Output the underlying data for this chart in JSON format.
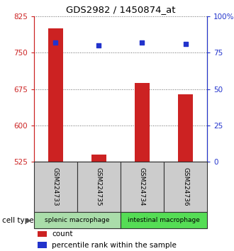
{
  "title": "GDS2982 / 1450874_at",
  "samples": [
    "GSM224733",
    "GSM224735",
    "GSM224734",
    "GSM224736"
  ],
  "bar_values": [
    800,
    540,
    688,
    665
  ],
  "bar_base": 525,
  "percentile_values": [
    82,
    80,
    82,
    81
  ],
  "ylim_left": [
    525,
    825
  ],
  "ylim_right": [
    0,
    100
  ],
  "yticks_left": [
    525,
    600,
    675,
    750,
    825
  ],
  "yticks_right": [
    0,
    25,
    50,
    75,
    100
  ],
  "ytick_labels_left": [
    "525",
    "600",
    "675",
    "750",
    "825"
  ],
  "ytick_labels_right": [
    "0",
    "25",
    "50",
    "75",
    "100%"
  ],
  "bar_color": "#cc2222",
  "dot_color": "#2233cc",
  "grid_color": "#888888",
  "groups": [
    {
      "label": "splenic macrophage",
      "samples": [
        0,
        1
      ],
      "color": "#aaddaa"
    },
    {
      "label": "intestinal macrophage",
      "samples": [
        2,
        3
      ],
      "color": "#55dd55"
    }
  ],
  "cell_type_label": "cell type",
  "legend_count_label": "count",
  "legend_pct_label": "percentile rank within the sample",
  "bar_width": 0.35,
  "sample_box_color": "#cccccc",
  "sample_box_edge": "#333333"
}
